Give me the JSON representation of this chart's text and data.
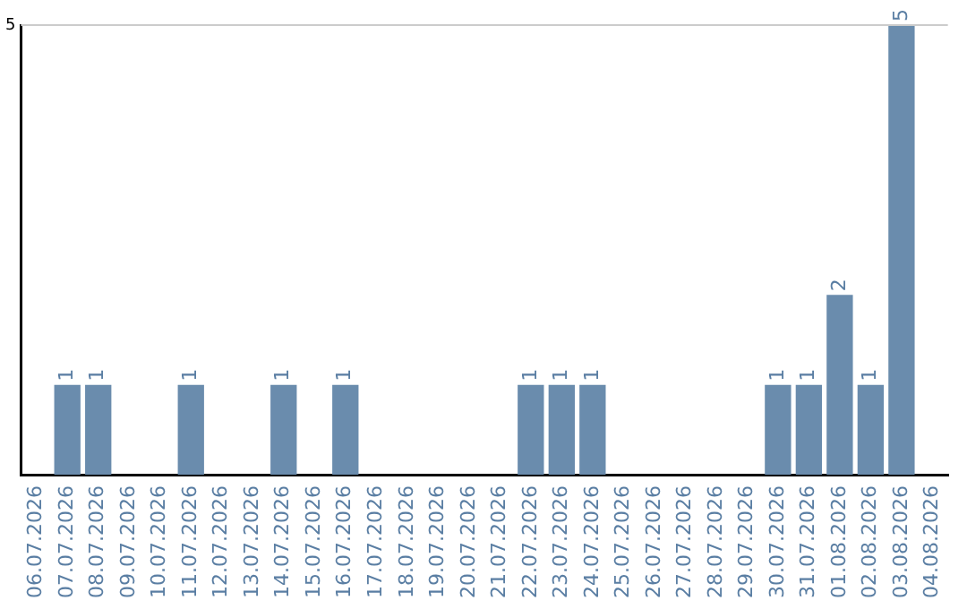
{
  "chart_data": {
    "type": "bar",
    "categories": [
      "06.07.2026",
      "07.07.2026",
      "08.07.2026",
      "09.07.2026",
      "10.07.2026",
      "11.07.2026",
      "12.07.2026",
      "13.07.2026",
      "14.07.2026",
      "15.07.2026",
      "16.07.2026",
      "17.07.2026",
      "18.07.2026",
      "19.07.2026",
      "20.07.2026",
      "21.07.2026",
      "22.07.2026",
      "23.07.2026",
      "24.07.2026",
      "25.07.2026",
      "26.07.2026",
      "27.07.2026",
      "28.07.2026",
      "29.07.2026",
      "30.07.2026",
      "31.07.2026",
      "01.08.2026",
      "02.08.2026",
      "03.08.2026",
      "04.08.2026"
    ],
    "values": [
      0,
      1,
      1,
      0,
      0,
      1,
      0,
      0,
      1,
      0,
      1,
      0,
      0,
      0,
      0,
      0,
      1,
      1,
      1,
      0,
      0,
      0,
      0,
      0,
      1,
      1,
      2,
      1,
      5,
      0
    ],
    "value_labels": [
      null,
      "1",
      "1",
      null,
      null,
      "1",
      null,
      null,
      "1",
      null,
      "1",
      null,
      null,
      null,
      null,
      null,
      "1",
      "1",
      "1",
      null,
      null,
      null,
      null,
      null,
      "1",
      "1",
      "2",
      "1",
      "5",
      null
    ],
    "color": "#6a8cad",
    "ylim": [
      0,
      5
    ],
    "yticks": [
      5
    ],
    "ref_lines": [
      {
        "axis": "y",
        "value": 5,
        "color": "#cccccc"
      }
    ]
  }
}
